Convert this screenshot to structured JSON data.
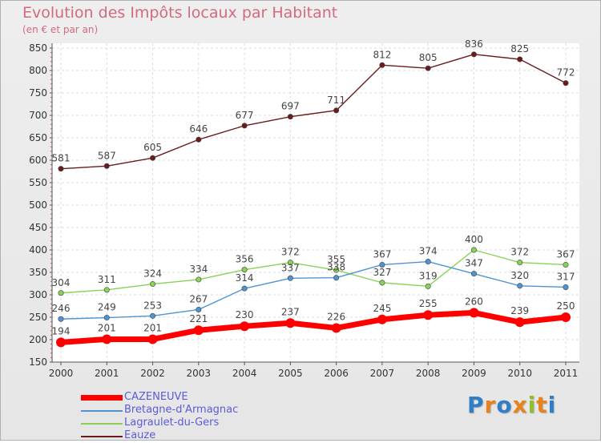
{
  "title": "Evolution des Impôts locaux par Habitant",
  "subtitle": "(en € et par an)",
  "logo": {
    "letters": [
      "P",
      "r",
      "o",
      "x",
      "i",
      "t",
      "i"
    ],
    "colors": [
      "#2f7fc8",
      "#e8821e",
      "#2f7fc8",
      "#e8821e",
      "#8fbf2a",
      "#e8821e",
      "#2f7fc8"
    ]
  },
  "chart_data": {
    "type": "line",
    "title": "Evolution des Impôts locaux par Habitant",
    "subtitle": "(en € et par an)",
    "xlabel": "",
    "ylabel": "",
    "x": [
      "2000",
      "2001",
      "2002",
      "2003",
      "2004",
      "2005",
      "2006",
      "2007",
      "2008",
      "2009",
      "2010",
      "2011"
    ],
    "ylim": [
      150,
      850
    ],
    "yticks": [
      150,
      200,
      250,
      300,
      350,
      400,
      450,
      500,
      550,
      600,
      650,
      700,
      750,
      800,
      850
    ],
    "grid": true,
    "legend": "bottom-left",
    "series": [
      {
        "name": "CAZENEUVE",
        "color": "#ff0000",
        "values": [
          194,
          201,
          201,
          221,
          230,
          237,
          226,
          245,
          255,
          260,
          239,
          250
        ]
      },
      {
        "name": "Bretagne-d'Armagnac",
        "color": "#4f94d1",
        "values": [
          246,
          249,
          253,
          267,
          314,
          337,
          338,
          367,
          374,
          347,
          320,
          317
        ]
      },
      {
        "name": "Lagraulet-du-Gers",
        "color": "#88d357",
        "values": [
          304,
          311,
          324,
          334,
          356,
          372,
          355,
          327,
          319,
          400,
          372,
          367
        ]
      },
      {
        "name": "Eauze",
        "color": "#6b1b1b",
        "values": [
          581,
          587,
          605,
          646,
          677,
          697,
          711,
          812,
          805,
          836,
          825,
          772
        ]
      }
    ]
  }
}
